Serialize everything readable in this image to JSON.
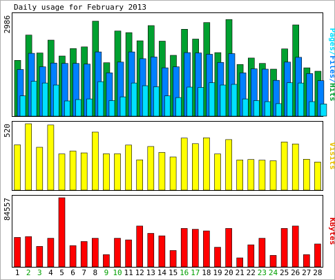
{
  "chart_data": {
    "type": "bar",
    "title": "Daily usage for February 2013",
    "categories": [
      "1",
      "2",
      "3",
      "4",
      "5",
      "6",
      "7",
      "8",
      "9",
      "10",
      "11",
      "12",
      "13",
      "14",
      "15",
      "16",
      "17",
      "18",
      "19",
      "20",
      "21",
      "22",
      "23",
      "24",
      "25",
      "26",
      "27",
      "28"
    ],
    "weekend_categories": [
      "2",
      "3",
      "9",
      "10",
      "16",
      "17",
      "23",
      "24"
    ],
    "panels": [
      {
        "id": "pages-files-hits",
        "max_label": "2986",
        "side_label": "Pages/Files/Hits",
        "ylim": [
          0,
          2986
        ],
        "series": [
          {
            "name": "Hits",
            "color": "#00A030",
            "values": [
              1650,
              2400,
              1870,
              2250,
              1780,
              2000,
              2050,
              2810,
              1580,
              2520,
              2470,
              2230,
              2680,
              2220,
              1800,
              2570,
              2280,
              2770,
              1880,
              2860,
              1530,
              1720,
              1560,
              1390,
              1990,
              2700,
              1430,
              1330
            ]
          },
          {
            "name": "Files",
            "color": "#0080FF",
            "values": [
              1380,
              1860,
              1460,
              1570,
              1560,
              1560,
              1540,
              1900,
              1280,
              1600,
              1900,
              1700,
              1750,
              1430,
              1460,
              1880,
              1870,
              1830,
              1590,
              1850,
              1280,
              1400,
              1390,
              1060,
              1600,
              1740,
              1260,
              1050
            ]
          },
          {
            "name": "Pages",
            "color": "#00E0FF",
            "values": [
              600,
              1030,
              980,
              920,
              450,
              490,
              510,
              1020,
              460,
              570,
              980,
              900,
              870,
              600,
              550,
              860,
              850,
              990,
              920,
              940,
              510,
              460,
              430,
              370,
              990,
              980,
              430,
              360
            ]
          }
        ],
        "side_label_colors": [
          "#0080FF",
          "#00A030",
          "#00E0FF"
        ]
      },
      {
        "id": "visits",
        "max_label": "520",
        "side_label": "Visits",
        "ylim": [
          0,
          520
        ],
        "series": [
          {
            "name": "Visits",
            "color": "#FFFF00",
            "values": [
              355,
              520,
              336,
              510,
              284,
              306,
              292,
              455,
              285,
              285,
              353,
              237,
              342,
              295,
              260,
              408,
              364,
              410,
              284,
              396,
              236,
              240,
              235,
              230,
              377,
              362,
              242,
              220
            ]
          }
        ]
      },
      {
        "id": "kbytes",
        "max_label": "84557",
        "side_label": "KBytes",
        "ylim": [
          0,
          84557
        ],
        "series": [
          {
            "name": "KBytes",
            "color": "#FF0000",
            "values": [
              36000,
              37000,
              25000,
              35000,
              84557,
              26000,
              31000,
              35000,
              15000,
              35000,
              33000,
              50000,
              41000,
              38000,
              20000,
              47000,
              46000,
              44000,
              24000,
              47000,
              11000,
              27000,
              35000,
              14000,
              47000,
              50000,
              15000,
              28000
            ]
          }
        ]
      }
    ]
  }
}
